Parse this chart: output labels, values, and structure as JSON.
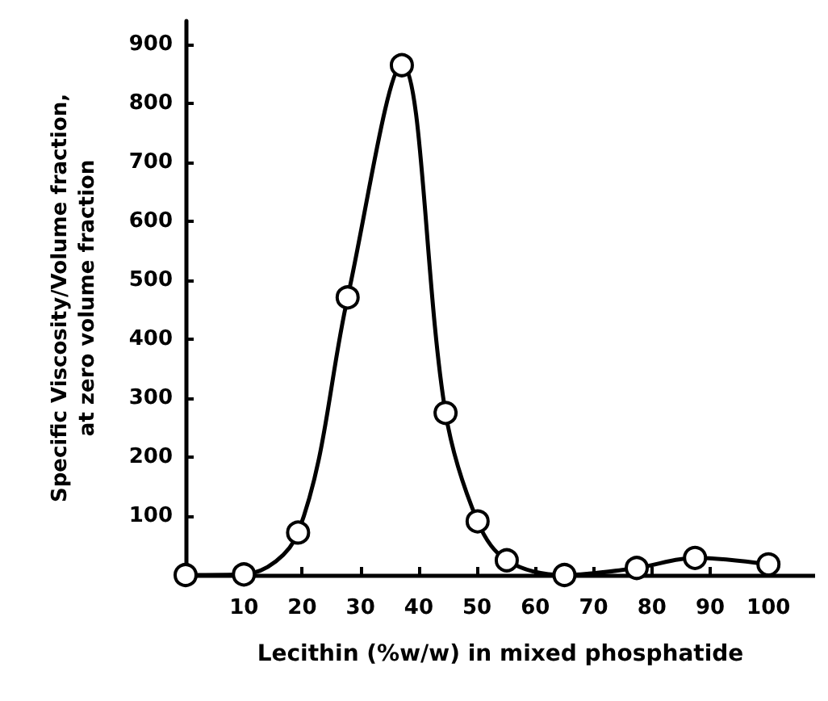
{
  "chart_data": {
    "type": "line",
    "xlabel": "Lecithin (%w/w) in mixed phosphatide",
    "ylabel": "Specific Viscosity/Volume fraction,\nat zero volume fraction",
    "x": [
      0,
      10,
      19.3,
      27.8,
      37.1,
      44.6,
      50.1,
      55.1,
      65,
      77.4,
      87.4,
      100
    ],
    "values": [
      0,
      1,
      72,
      471,
      865,
      275,
      91,
      25,
      0,
      12,
      29,
      18
    ],
    "color": "#000000",
    "marker": "circle",
    "line_style": "solid",
    "xlim": [
      0,
      108
    ],
    "xticks": [
      10,
      20,
      30,
      40,
      50,
      60,
      70,
      80,
      90,
      100
    ],
    "ylim": [
      0,
      940
    ],
    "yticks": [
      100,
      200,
      300,
      400,
      500,
      600,
      700,
      800,
      900
    ],
    "grid": false
  }
}
